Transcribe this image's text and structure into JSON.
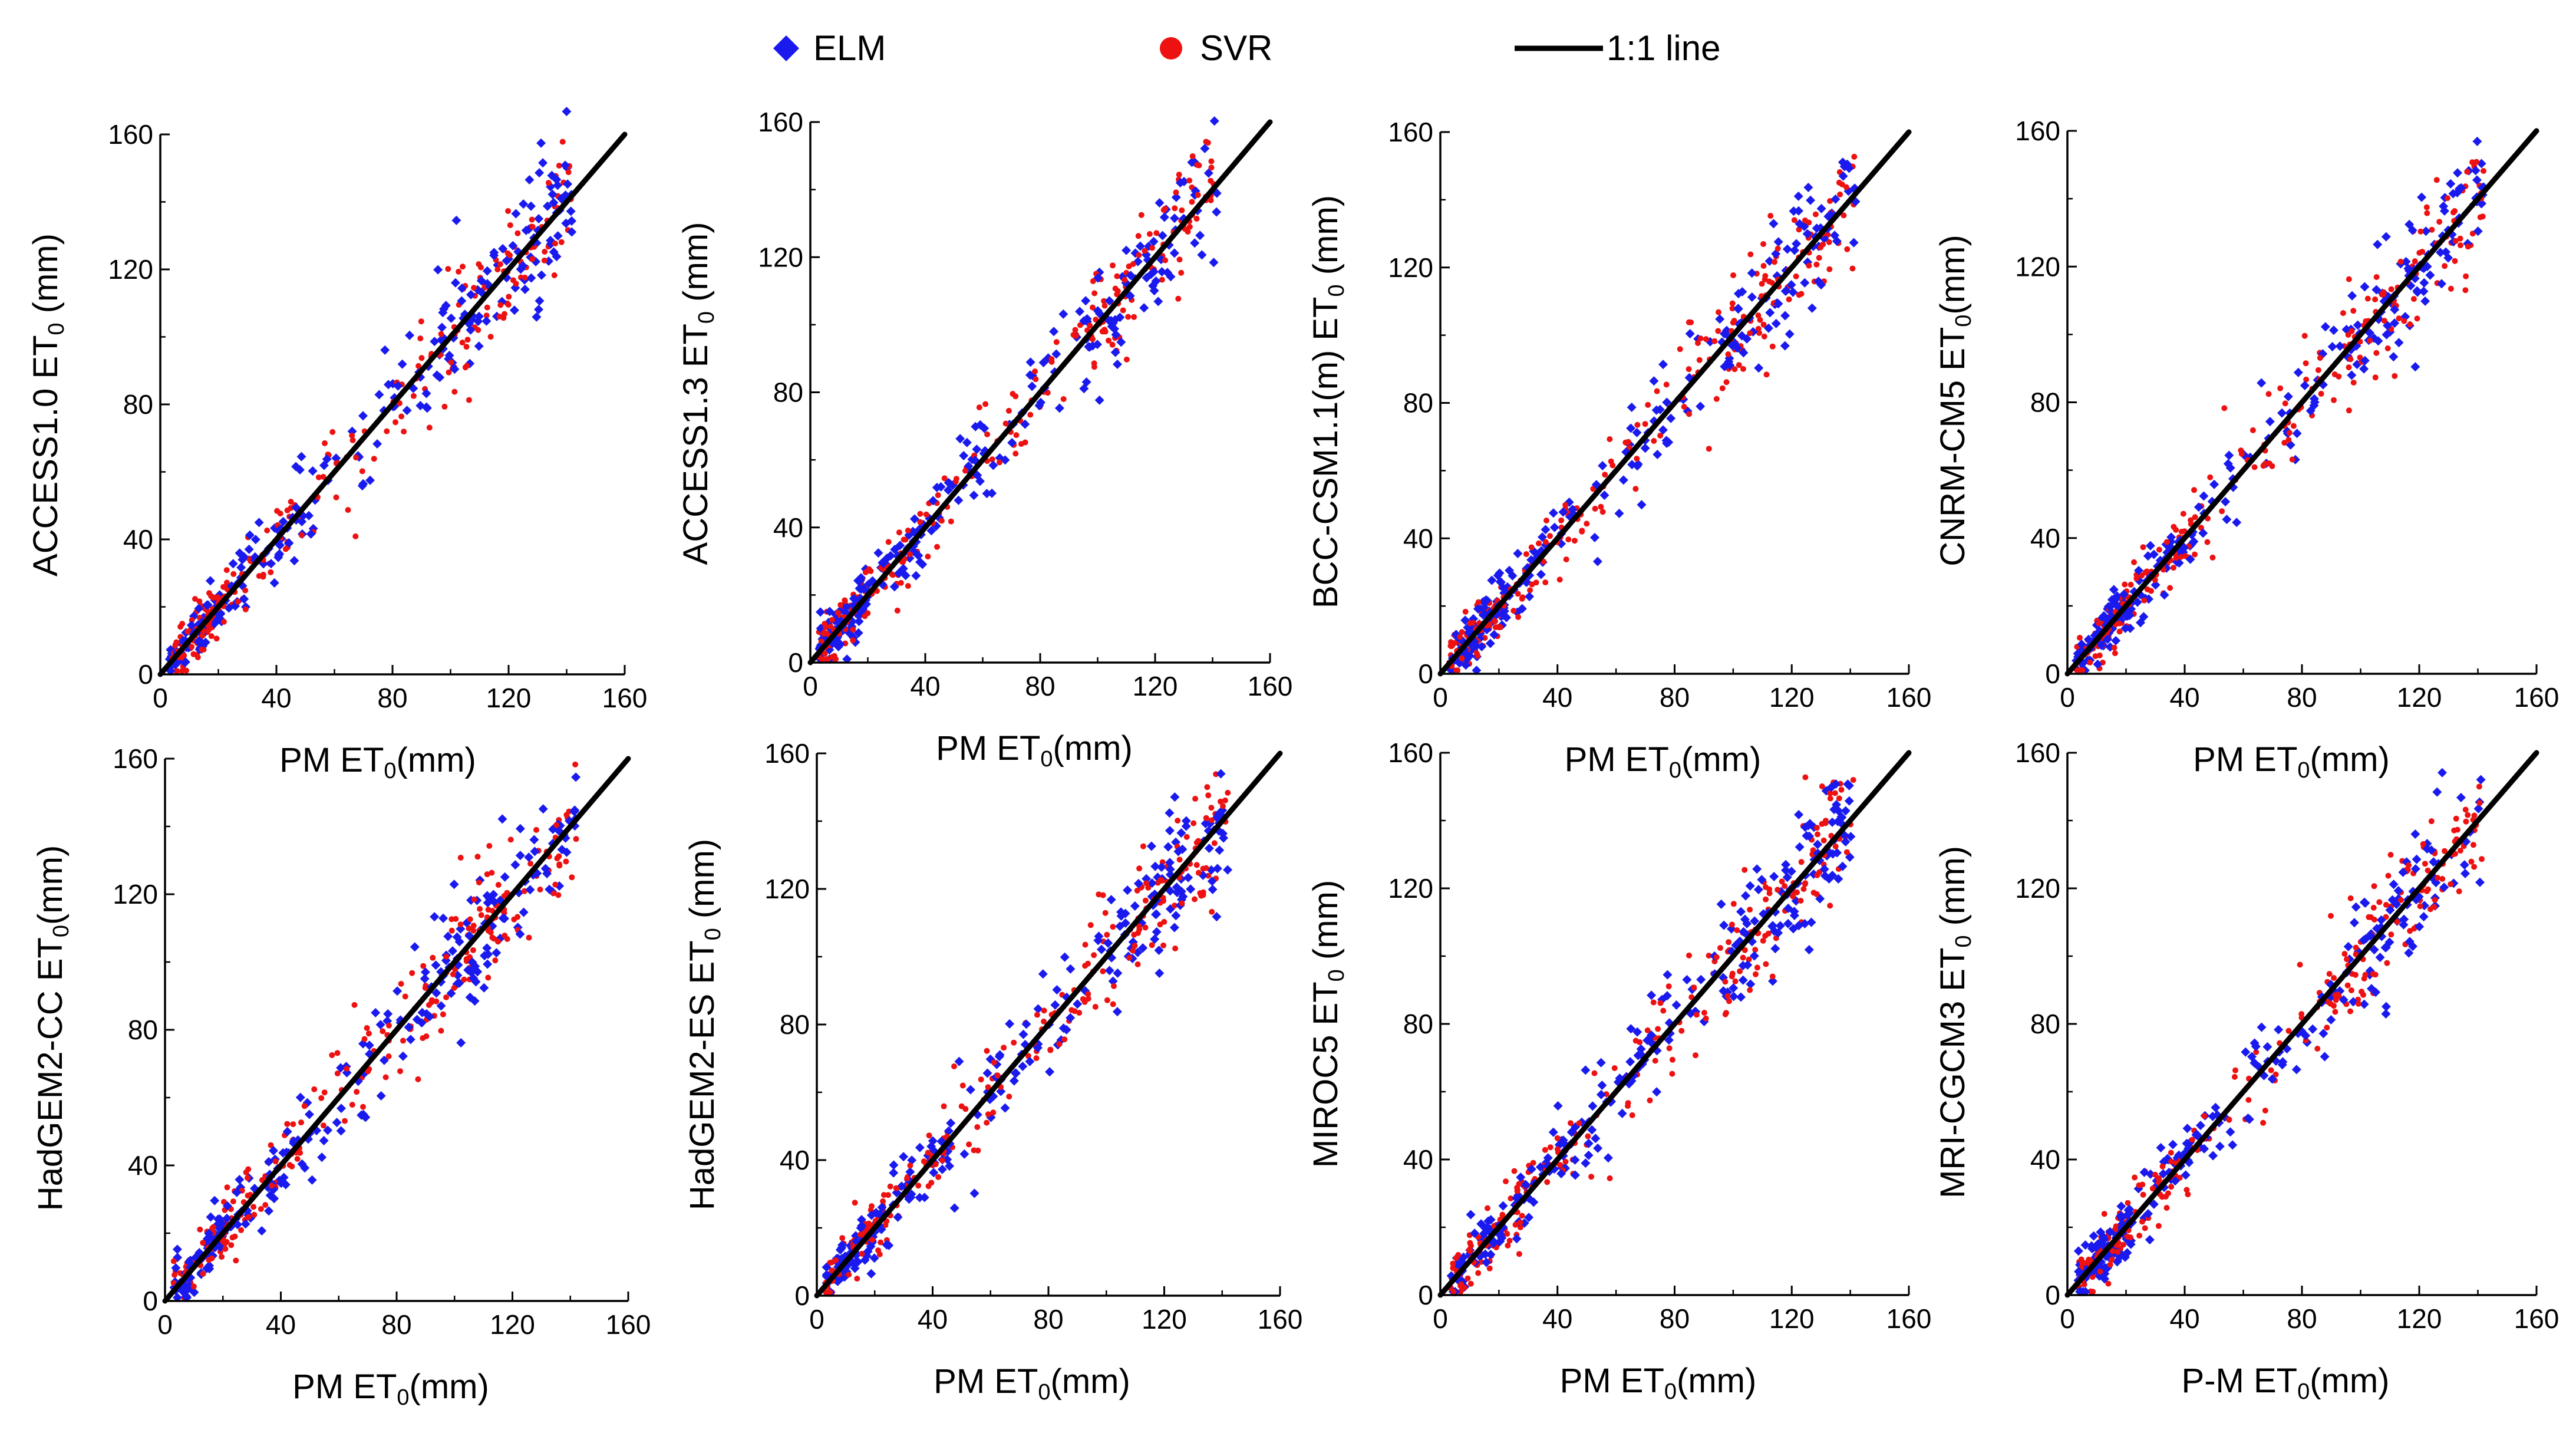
{
  "legend": {
    "elm_label": "ELM",
    "svr_label": "SVR",
    "line_label": "1:1 line"
  },
  "colors": {
    "elm": "#1a1aee",
    "svr": "#ee1111",
    "line": "#000000",
    "axis": "#000000"
  },
  "chart_data": [
    {
      "type": "scatter",
      "panel": 1,
      "title": "",
      "ylabel_main": "ACCESS1.0 ET",
      "ylabel_sub": "0",
      "ylabel_tail": " (mm)",
      "xlabel_main": "PM ET",
      "xlabel_sub": "0",
      "xlabel_tail": "(mm)",
      "xlim": [
        0,
        160
      ],
      "ylim": [
        0,
        160
      ],
      "ticks": [
        "0",
        "40",
        "80",
        "120",
        "160"
      ],
      "series": [
        {
          "name": "ELM"
        },
        {
          "name": "SVR"
        }
      ],
      "reference_line": {
        "name": "1:1 line",
        "x": [
          0,
          160
        ],
        "y": [
          0,
          160
        ]
      }
    },
    {
      "type": "scatter",
      "panel": 2,
      "title": "",
      "ylabel_main": "ACCESS1.3 ET",
      "ylabel_sub": "0",
      "ylabel_tail": " (mm)",
      "xlabel_main": "PM ET",
      "xlabel_sub": "0",
      "xlabel_tail": "(mm)",
      "xlim": [
        0,
        160
      ],
      "ylim": [
        0,
        160
      ],
      "ticks": [
        "0",
        "40",
        "80",
        "120",
        "160"
      ],
      "series": [
        {
          "name": "ELM"
        },
        {
          "name": "SVR"
        }
      ],
      "reference_line": {
        "name": "1:1 line",
        "x": [
          0,
          160
        ],
        "y": [
          0,
          160
        ]
      }
    },
    {
      "type": "scatter",
      "panel": 3,
      "title": "",
      "ylabel_main": "BCC-CSM1.1(m) ET",
      "ylabel_sub": "0",
      "ylabel_tail": " (mm)",
      "xlabel_main": "PM ET",
      "xlabel_sub": "0",
      "xlabel_tail": "(mm)",
      "xlim": [
        0,
        160
      ],
      "ylim": [
        0,
        160
      ],
      "ticks": [
        "0",
        "40",
        "80",
        "120",
        "160"
      ],
      "series": [
        {
          "name": "ELM"
        },
        {
          "name": "SVR"
        }
      ],
      "reference_line": {
        "name": "1:1 line",
        "x": [
          0,
          160
        ],
        "y": [
          0,
          160
        ]
      }
    },
    {
      "type": "scatter",
      "panel": 4,
      "title": "",
      "ylabel_main": "CNRM-CM5 ET",
      "ylabel_sub": "0",
      "ylabel_tail": "(mm)",
      "xlabel_main": "PM ET",
      "xlabel_sub": "0",
      "xlabel_tail": "(mm)",
      "xlim": [
        0,
        160
      ],
      "ylim": [
        0,
        160
      ],
      "ticks": [
        "0",
        "40",
        "80",
        "120",
        "160"
      ],
      "series": [
        {
          "name": "ELM"
        },
        {
          "name": "SVR"
        }
      ],
      "reference_line": {
        "name": "1:1 line",
        "x": [
          0,
          160
        ],
        "y": [
          0,
          160
        ]
      }
    },
    {
      "type": "scatter",
      "panel": 5,
      "title": "",
      "ylabel_main": "HadGEM2-CC ET",
      "ylabel_sub": "0",
      "ylabel_tail": "(mm)",
      "xlabel_main": "PM ET",
      "xlabel_sub": "0",
      "xlabel_tail": "(mm)",
      "xlim": [
        0,
        160
      ],
      "ylim": [
        0,
        160
      ],
      "ticks": [
        "0",
        "40",
        "80",
        "120",
        "160"
      ],
      "series": [
        {
          "name": "ELM"
        },
        {
          "name": "SVR"
        }
      ],
      "reference_line": {
        "name": "1:1 line",
        "x": [
          0,
          160
        ],
        "y": [
          0,
          160
        ]
      }
    },
    {
      "type": "scatter",
      "panel": 6,
      "title": "",
      "ylabel_main": "HadGEM2-ES ET",
      "ylabel_sub": "0",
      "ylabel_tail": " (mm)",
      "xlabel_main": "PM ET",
      "xlabel_sub": "0",
      "xlabel_tail": "(mm)",
      "xlim": [
        0,
        160
      ],
      "ylim": [
        0,
        160
      ],
      "ticks": [
        "0",
        "40",
        "80",
        "120",
        "160"
      ],
      "series": [
        {
          "name": "ELM"
        },
        {
          "name": "SVR"
        }
      ],
      "reference_line": {
        "name": "1:1 line",
        "x": [
          0,
          160
        ],
        "y": [
          0,
          160
        ]
      }
    },
    {
      "type": "scatter",
      "panel": 7,
      "title": "",
      "ylabel_main": "MIROC5 ET",
      "ylabel_sub": "0",
      "ylabel_tail": " (mm)",
      "xlabel_main": "PM ET",
      "xlabel_sub": "0",
      "xlabel_tail": "(mm)",
      "xlim": [
        0,
        160
      ],
      "ylim": [
        0,
        160
      ],
      "ticks": [
        "0",
        "40",
        "80",
        "120",
        "160"
      ],
      "series": [
        {
          "name": "ELM"
        },
        {
          "name": "SVR"
        }
      ],
      "reference_line": {
        "name": "1:1 line",
        "x": [
          0,
          160
        ],
        "y": [
          0,
          160
        ]
      }
    },
    {
      "type": "scatter",
      "panel": 8,
      "title": "",
      "ylabel_main": "MRI-CGCM3 ET",
      "ylabel_sub": "0",
      "ylabel_tail": " (mm)",
      "xlabel_main": "P-M ET",
      "xlabel_sub": "0",
      "xlabel_tail": "(mm)",
      "xlim": [
        0,
        160
      ],
      "ylim": [
        0,
        160
      ],
      "ticks": [
        "0",
        "40",
        "80",
        "120",
        "160"
      ],
      "series": [
        {
          "name": "ELM"
        },
        {
          "name": "SVR"
        }
      ],
      "reference_line": {
        "name": "1:1 line",
        "x": [
          0,
          160
        ],
        "y": [
          0,
          160
        ]
      }
    }
  ]
}
